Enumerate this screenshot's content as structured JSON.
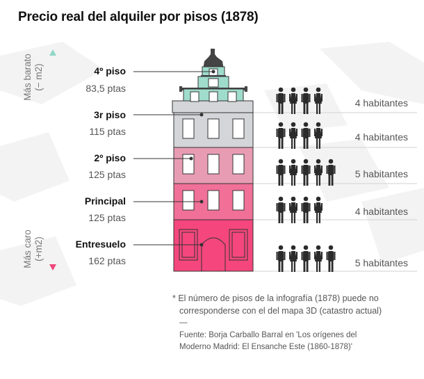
{
  "title": "Precio real del alquiler por pisos (1878)",
  "axis": {
    "top_label_1": "Más barato",
    "top_label_2": "(− m2)",
    "bottom_label_1": "Más caro",
    "bottom_label_2": "(+m2)"
  },
  "floors": [
    {
      "name": "4º piso",
      "price": "83,5 ptas",
      "residents": "4 habitantes",
      "people_count": 4
    },
    {
      "name": "3r piso",
      "price": "115 ptas",
      "residents": "4 habitantes",
      "people_count": 4
    },
    {
      "name": "2º piso",
      "price": "125 ptas",
      "residents": "5 habitantes",
      "people_count": 5
    },
    {
      "name": "Principal",
      "price": "125 ptas",
      "residents": "4 habitantes",
      "people_count": 4
    },
    {
      "name": "Entresuelo",
      "price": "162 ptas",
      "residents": "5 habitantes",
      "people_count": 5
    }
  ],
  "note": {
    "line1": "*  El número de pisos de la infografía (1878) puede no",
    "line2": "corresponderse con el del mapa 3D (catastro actual)",
    "dash": "—",
    "source1": "Fuente: Borja Carballo Barral en 'Los orígenes del",
    "source2": "Moderno Madrid: El Ensanche Este (1860-1878)'"
  },
  "colors": {
    "attic": "#9fdccb",
    "third": "#d3d5d8",
    "second": "#e89cb4",
    "principal": "#f07098",
    "entresuelo": "#f5477d",
    "arrow_top": "#8fd6c6",
    "arrow_bottom": "#f0457a"
  }
}
